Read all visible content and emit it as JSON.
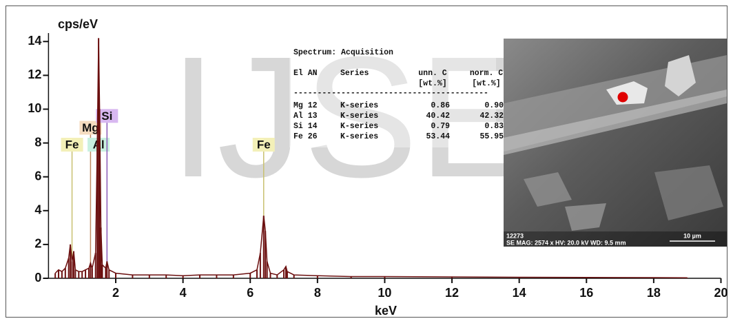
{
  "chart_data": {
    "type": "line",
    "title": "cps/eV",
    "x_label": "keV",
    "watermark": "IJSER",
    "color": "#6b0f0f",
    "x": [
      0.2,
      0.3,
      0.4,
      0.5,
      0.6,
      0.65,
      0.7,
      0.75,
      0.8,
      0.9,
      1.0,
      1.1,
      1.2,
      1.25,
      1.3,
      1.4,
      1.45,
      1.49,
      1.52,
      1.56,
      1.6,
      1.7,
      1.74,
      1.8,
      2.0,
      2.5,
      3.0,
      3.5,
      4.0,
      4.5,
      5.0,
      5.5,
      6.0,
      6.2,
      6.3,
      6.4,
      6.45,
      6.5,
      6.6,
      6.8,
      7.0,
      7.06,
      7.1,
      7.3,
      8,
      9,
      10,
      12,
      14,
      16,
      18,
      19
    ],
    "values": [
      0.3,
      0.5,
      0.4,
      0.6,
      1.2,
      2.0,
      1.0,
      1.6,
      0.5,
      0.4,
      0.4,
      0.5,
      0.6,
      0.9,
      0.6,
      1.5,
      8.0,
      14.2,
      10.0,
      3.0,
      0.8,
      0.6,
      1.0,
      0.5,
      0.3,
      0.2,
      0.2,
      0.2,
      0.15,
      0.2,
      0.2,
      0.2,
      0.3,
      0.5,
      1.5,
      3.7,
      2.8,
      1.0,
      0.3,
      0.2,
      0.5,
      0.7,
      0.4,
      0.2,
      0.15,
      0.1,
      0.1,
      0.08,
      0.06,
      0.05,
      0.04,
      0.03
    ],
    "xlim": [
      0,
      20
    ],
    "xticks": [
      2,
      4,
      6,
      8,
      10,
      12,
      14,
      16,
      18,
      20
    ],
    "ylim": [
      0,
      14.5
    ],
    "yticks": [
      0,
      2,
      4,
      6,
      8,
      10,
      12,
      14
    ],
    "peak_labels": [
      {
        "label": "Fe",
        "energy": 0.7,
        "y": 7.9,
        "color": "#f3f0b8",
        "line": "#c8c070"
      },
      {
        "label": "Mg",
        "energy": 1.25,
        "y": 8.9,
        "color": "#f5dcc0",
        "line": "#c08a60"
      },
      {
        "label": "Al",
        "energy": 1.49,
        "y": 7.9,
        "color": "#c8f0e0",
        "line": "#6fb59a"
      },
      {
        "label": "Si",
        "energy": 1.74,
        "y": 9.6,
        "color": "#d8b8f0",
        "line": "#8a5ab8"
      },
      {
        "label": "Fe",
        "energy": 6.4,
        "y": 7.9,
        "color": "#f3f0b8",
        "line": "#c8c070"
      }
    ],
    "table": {
      "title": "Spectrum: Acquisition",
      "header": [
        "El AN",
        "Series",
        "unn. C",
        "norm. C"
      ],
      "units": [
        "[wt.%]",
        "[wt.%]"
      ],
      "rule": "-----------------------------------------",
      "rows": [
        [
          "Mg 12",
          "K-series",
          "0.86",
          "0.90"
        ],
        [
          "Al 13",
          "K-series",
          "40.42",
          "42.32"
        ],
        [
          "Si 14",
          "K-series",
          "0.79",
          "0.83"
        ],
        [
          "Fe 26",
          "K-series",
          "53.44",
          "55.95"
        ]
      ]
    },
    "image": {
      "id": "12273",
      "caption": "SE  MAG: 2574 x  HV: 20.0 kV  WD: 9.5 mm",
      "scale": "10 µm"
    }
  }
}
